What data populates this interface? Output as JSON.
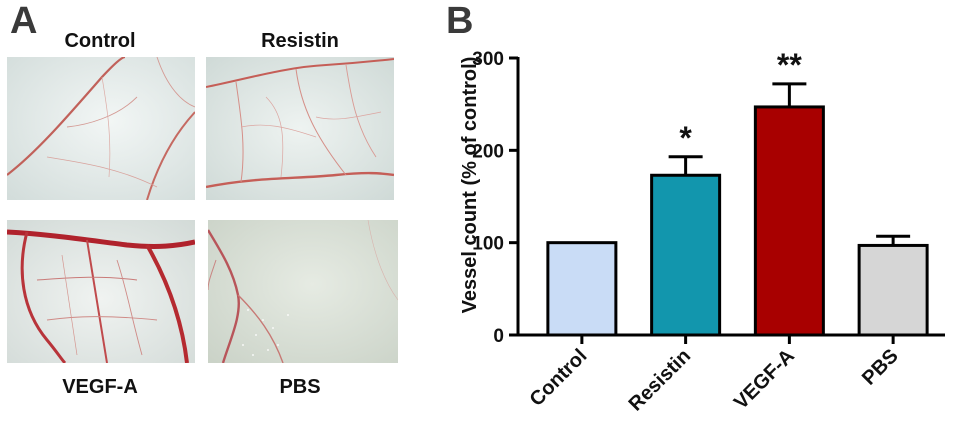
{
  "panel_a": {
    "letter": "A",
    "photos": [
      {
        "label": "Control"
      },
      {
        "label": "Resistin"
      },
      {
        "label": "VEGF-A"
      },
      {
        "label": "PBS"
      }
    ]
  },
  "panel_b": {
    "letter": "B"
  },
  "chart_data": {
    "type": "bar",
    "categories": [
      "Control",
      "Resistin",
      "VEGF-A",
      "PBS"
    ],
    "values": [
      100,
      173,
      247,
      97
    ],
    "errors": [
      0,
      20,
      25,
      10
    ],
    "annotations": [
      "",
      "*",
      "**",
      ""
    ],
    "colors": [
      "#c9dcf6",
      "#1296ad",
      "#a80000",
      "#d6d6d6"
    ],
    "title": "",
    "xlabel": "",
    "ylabel": "Vessel count (% of control)",
    "ylim": [
      0,
      300
    ],
    "yticks": [
      0,
      100,
      200,
      300
    ],
    "grid": false
  }
}
